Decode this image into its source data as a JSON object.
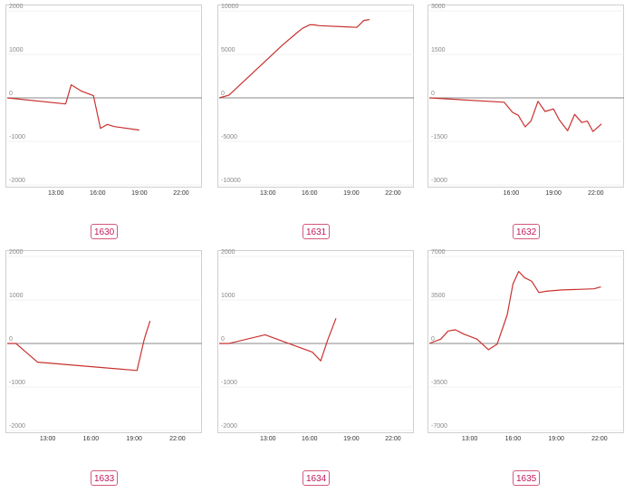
{
  "chart_data": [
    {
      "id": "1630",
      "type": "line",
      "line_color": "#c8322f",
      "yticks": [
        2000,
        1000,
        0,
        -1000,
        -2000
      ],
      "yticklabels": [
        "2000",
        "1000",
        "0",
        "-1000",
        "-2000"
      ],
      "ylim": [
        -2000,
        2000
      ],
      "xticks": [
        13,
        16,
        19,
        22
      ],
      "xticklabels": [
        "13:00",
        "16:00",
        "19:00",
        "22:00"
      ],
      "xlim": [
        9.5,
        23.5
      ],
      "x": [
        9.5,
        13.7,
        14.1,
        14.8,
        15.7,
        16.2,
        16.7,
        17.2,
        19.0
      ],
      "y": [
        0,
        -140,
        300,
        160,
        50,
        -700,
        -610,
        -660,
        -740
      ]
    },
    {
      "id": "1631",
      "type": "line",
      "line_color": "#c8322f",
      "yticks": [
        10000,
        5000,
        0,
        -5000,
        -10000
      ],
      "yticklabels": [
        "10000",
        "5000",
        "0",
        "-5000",
        "-10000"
      ],
      "ylim": [
        -10000,
        10000
      ],
      "xticks": [
        13,
        16,
        19,
        22
      ],
      "xticklabels": [
        "13:00",
        "16:00",
        "19:00",
        "22:00"
      ],
      "xlim": [
        9.5,
        23.5
      ],
      "x": [
        9.5,
        10.2,
        11.2,
        12.2,
        13.0,
        14.0,
        15.1,
        15.5,
        16.0,
        16.3,
        16.7,
        19.4,
        19.9,
        20.3
      ],
      "y": [
        0,
        300,
        1800,
        3300,
        4500,
        6000,
        7500,
        8000,
        8400,
        8400,
        8300,
        8100,
        8900,
        9000
      ]
    },
    {
      "id": "1632",
      "type": "line",
      "line_color": "#c8322f",
      "yticks": [
        3000,
        1500,
        0,
        -1500,
        -3000
      ],
      "yticklabels": [
        "3000",
        "1500",
        "0",
        "-1500",
        "-3000"
      ],
      "ylim": [
        -3000,
        3000
      ],
      "xticks": [
        16,
        19,
        22
      ],
      "xticklabels": [
        "16:00",
        "19:00",
        "22:00"
      ],
      "xlim": [
        10.2,
        24.0
      ],
      "x": [
        10.2,
        15.5,
        16.1,
        16.5,
        17.0,
        17.4,
        17.9,
        18.4,
        19.0,
        19.4,
        20.0,
        20.5,
        21.0,
        21.4,
        21.8,
        22.4
      ],
      "y": [
        0,
        -150,
        -500,
        -600,
        -1000,
        -800,
        -120,
        -470,
        -380,
        -750,
        -1130,
        -570,
        -850,
        -800,
        -1160,
        -900
      ]
    },
    {
      "id": "1633",
      "type": "line",
      "line_color": "#c8322f",
      "yticks": [
        2000,
        1000,
        0,
        -1000,
        -2000
      ],
      "yticklabels": [
        "2000",
        "1000",
        "0",
        "-1000",
        "-2000"
      ],
      "ylim": [
        -2000,
        2000
      ],
      "xticks": [
        13,
        16,
        19,
        22
      ],
      "xticklabels": [
        "13:00",
        "16:00",
        "19:00",
        "22:00"
      ],
      "xlim": [
        10.2,
        23.7
      ],
      "x": [
        10.2,
        10.8,
        12.3,
        19.2,
        19.7,
        20.1
      ],
      "y": [
        0,
        0,
        -430,
        -620,
        100,
        520
      ]
    },
    {
      "id": "1634",
      "type": "line",
      "line_color": "#c8322f",
      "yticks": [
        2000,
        1000,
        0,
        -1000,
        -2000
      ],
      "yticklabels": [
        "2000",
        "1000",
        "0",
        "-1000",
        "-2000"
      ],
      "ylim": [
        -2000,
        2000
      ],
      "xticks": [
        13,
        16,
        19,
        22
      ],
      "xticklabels": [
        "13:00",
        "16:00",
        "19:00",
        "22:00"
      ],
      "xlim": [
        9.5,
        23.5
      ],
      "x": [
        9.5,
        10.2,
        12.8,
        16.2,
        16.8,
        17.3,
        17.9
      ],
      "y": [
        0,
        0,
        200,
        -200,
        -400,
        80,
        580
      ]
    },
    {
      "id": "1635",
      "type": "line",
      "line_color": "#c8322f",
      "yticks": [
        7000,
        3500,
        0,
        -3500,
        -7000
      ],
      "yticklabels": [
        "7000",
        "3500",
        "0",
        "-3500",
        "-7000"
      ],
      "ylim": [
        -7000,
        7000
      ],
      "xticks": [
        13,
        16,
        19,
        22
      ],
      "xticklabels": [
        "13:00",
        "16:00",
        "19:00",
        "22:00"
      ],
      "xlim": [
        10.2,
        23.7
      ],
      "x": [
        10.2,
        11.0,
        11.5,
        12.0,
        12.6,
        13.5,
        14.3,
        14.9,
        15.6,
        16.0,
        16.4,
        16.8,
        17.3,
        17.8,
        18.3,
        19.3,
        21.6,
        22.1
      ],
      "y": [
        0,
        350,
        1000,
        1100,
        750,
        350,
        -500,
        -50,
        2300,
        4800,
        5800,
        5300,
        5000,
        4100,
        4200,
        4300,
        4400,
        4550
      ]
    }
  ]
}
